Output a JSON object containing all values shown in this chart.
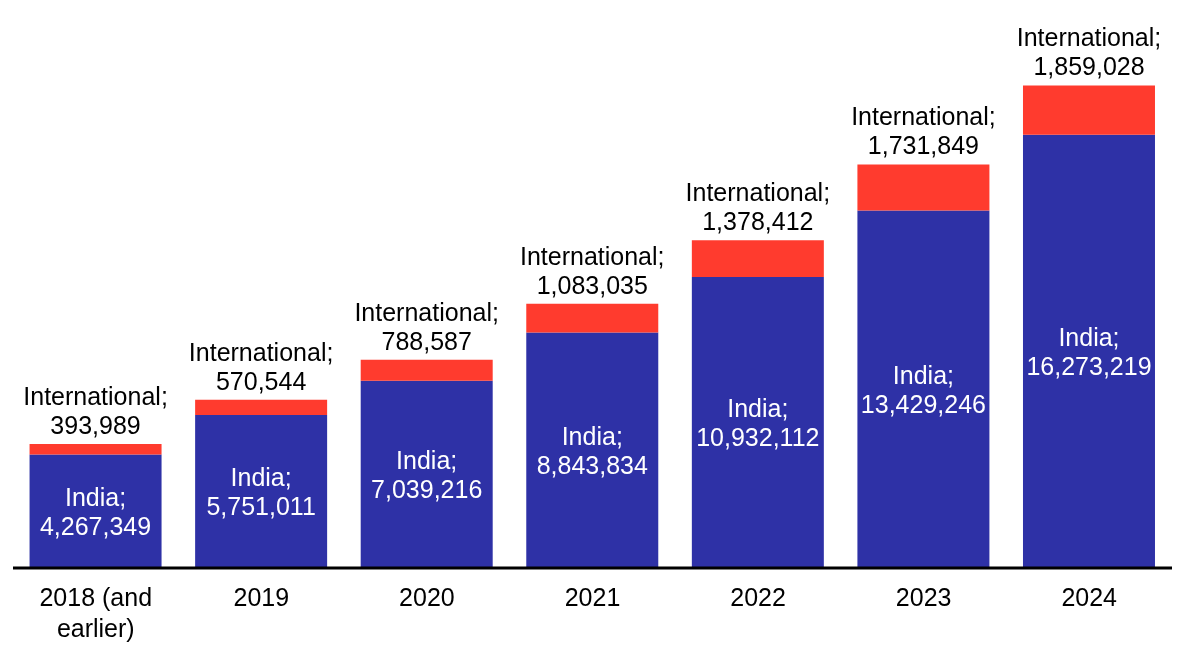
{
  "chart_data": {
    "type": "bar",
    "stacked": true,
    "categories": [
      "2018 (and earlier)",
      "2019",
      "2020",
      "2021",
      "2022",
      "2023",
      "2024"
    ],
    "series": [
      {
        "color": "#2e31a6",
        "values": [
          4267349,
          5751011,
          7039216,
          8843834,
          10932112,
          13429246,
          16273219
        ],
        "value_labels": [
          "India; 4,267,349",
          "India; 5,751,011",
          "India; 7,039,216",
          "India; 8,843,834",
          "India; 10,932,112",
          "India; 13,429,246",
          "India; 16,273,219"
        ]
      },
      {
        "color": "#ff3b2e",
        "values": [
          393989,
          570544,
          788587,
          1083035,
          1378412,
          1731849,
          1859028
        ],
        "value_labels": [
          "International; 393,989",
          "International; 570,544",
          "International; 788,587",
          "International; 1,083,035",
          "International; 1,378,412",
          "International; 1,731,849",
          "International; 1,859,028"
        ]
      }
    ],
    "legend": false
  }
}
